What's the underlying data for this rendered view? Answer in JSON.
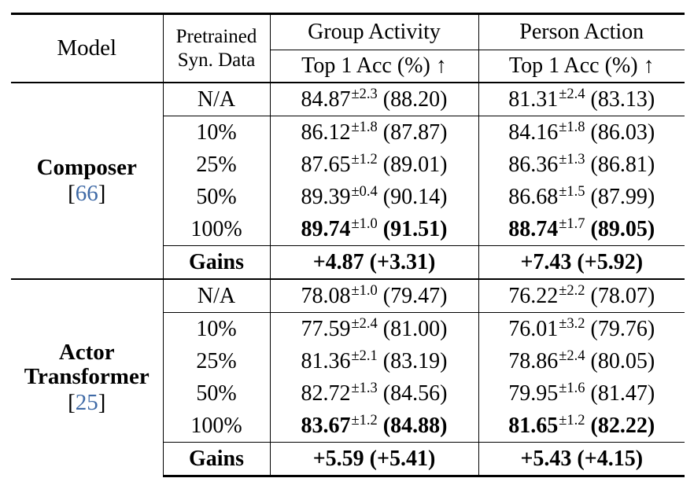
{
  "header": {
    "model": "Model",
    "pretrained_line1": "Pretrained",
    "pretrained_line2": "Syn. Data",
    "group_activity": "Group Activity",
    "person_action": "Person Action",
    "metric_ga": "Top 1 Acc (%) ↑",
    "metric_pa": "Top 1 Acc (%) ↑"
  },
  "groups": [
    {
      "name_lines": [
        "Composer"
      ],
      "ref": "66",
      "rows": [
        {
          "data": "N/A",
          "ga_mean": "84.87",
          "ga_std": "±2.3",
          "ga_best": "(88.20)",
          "pa_mean": "81.31",
          "pa_std": "±2.4",
          "pa_best": "(83.13)"
        },
        {
          "data": "10%",
          "ga_mean": "86.12",
          "ga_std": "±1.8",
          "ga_best": "(87.87)",
          "pa_mean": "84.16",
          "pa_std": "±1.8",
          "pa_best": "(86.03)"
        },
        {
          "data": "25%",
          "ga_mean": "87.65",
          "ga_std": "±1.2",
          "ga_best": "(89.01)",
          "pa_mean": "86.36",
          "pa_std": "±1.3",
          "pa_best": "(86.81)"
        },
        {
          "data": "50%",
          "ga_mean": "89.39",
          "ga_std": "±0.4",
          "ga_best": "(90.14)",
          "pa_mean": "86.68",
          "pa_std": "±1.5",
          "pa_best": "(87.99)"
        },
        {
          "data": "100%",
          "ga_mean": "89.74",
          "ga_std": "±1.0",
          "ga_best": "(91.51)",
          "pa_mean": "88.74",
          "pa_std": "±1.7",
          "pa_best": "(89.05)"
        }
      ],
      "gains": {
        "label": "Gains",
        "ga": "+4.87 (+3.31)",
        "pa": "+7.43 (+5.92)"
      }
    },
    {
      "name_lines": [
        "Actor",
        "Transformer"
      ],
      "ref": "25",
      "rows": [
        {
          "data": "N/A",
          "ga_mean": "78.08",
          "ga_std": "±1.0",
          "ga_best": "(79.47)",
          "pa_mean": "76.22",
          "pa_std": "±2.2",
          "pa_best": "(78.07)"
        },
        {
          "data": "10%",
          "ga_mean": "77.59",
          "ga_std": "±2.4",
          "ga_best": "(81.00)",
          "pa_mean": "76.01",
          "pa_std": "±3.2",
          "pa_best": "(79.76)"
        },
        {
          "data": "25%",
          "ga_mean": "81.36",
          "ga_std": "±2.1",
          "ga_best": "(83.19)",
          "pa_mean": "78.86",
          "pa_std": "±2.4",
          "pa_best": "(80.05)"
        },
        {
          "data": "50%",
          "ga_mean": "82.72",
          "ga_std": "±1.3",
          "ga_best": "(84.56)",
          "pa_mean": "79.95",
          "pa_std": "±1.6",
          "pa_best": "(81.47)"
        },
        {
          "data": "100%",
          "ga_mean": "83.67",
          "ga_std": "±1.2",
          "ga_best": "(84.88)",
          "pa_mean": "81.65",
          "pa_std": "±1.2",
          "pa_best": "(82.22)"
        }
      ],
      "gains": {
        "label": "Gains",
        "ga": "+5.59 (+5.41)",
        "pa": "+5.43 (+4.15)"
      }
    }
  ]
}
